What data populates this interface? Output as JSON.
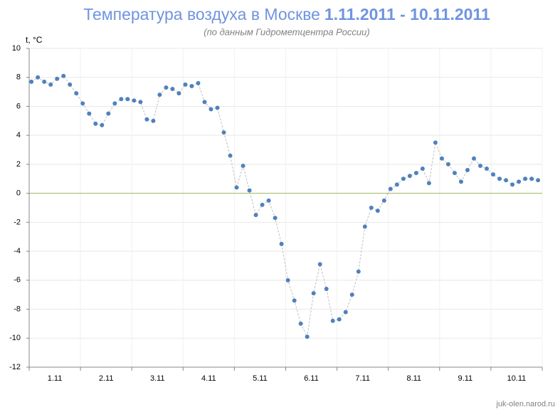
{
  "chart_data": {
    "type": "line",
    "title": "Температура воздуха в Москве",
    "title_dates": "1.11.2011 - 10.11.2011",
    "subtitle": "(по данным Гидрометцентра России)",
    "y_label": "t, °C",
    "footer": "juk-olen.narod.ru",
    "x_labels": [
      "1.11",
      "2.11",
      "3.11",
      "4.11",
      "5.11",
      "6.11",
      "7.11",
      "8.11",
      "9.11",
      "10.11"
    ],
    "points_per_label": 8,
    "series": [
      {
        "name": "t",
        "color": "#4f81bd",
        "values": [
          7.7,
          8.0,
          7.7,
          7.5,
          7.9,
          8.1,
          7.5,
          6.9,
          6.2,
          5.5,
          4.8,
          4.7,
          5.5,
          6.2,
          6.5,
          6.5,
          6.4,
          6.3,
          5.1,
          5.0,
          6.8,
          7.3,
          7.2,
          6.9,
          7.5,
          7.4,
          7.6,
          6.3,
          5.8,
          5.9,
          4.2,
          2.6,
          0.4,
          1.9,
          0.2,
          -1.5,
          -0.8,
          -0.5,
          -1.7,
          -3.5,
          -6.0,
          -7.4,
          -9.0,
          -9.9,
          -6.9,
          -4.9,
          -6.6,
          -8.8,
          -8.7,
          -8.2,
          -7.0,
          -5.4,
          -2.3,
          -1.0,
          -1.2,
          -0.5,
          0.3,
          0.6,
          1.0,
          1.2,
          1.4,
          1.7,
          0.7,
          3.5,
          2.4,
          2.0,
          1.4,
          0.8,
          1.6,
          2.4,
          1.9,
          1.7,
          1.3,
          1.0,
          0.9,
          0.6,
          0.8,
          1.0,
          1.0,
          0.9
        ]
      }
    ],
    "ylim": [
      -12,
      10
    ],
    "yticks": [
      -12,
      -10,
      -8,
      -6,
      -4,
      -2,
      0,
      2,
      4,
      6,
      8,
      10
    ],
    "grid": true,
    "zero_line_color": "#9bbb59",
    "line_color": "#c0c0c0"
  }
}
